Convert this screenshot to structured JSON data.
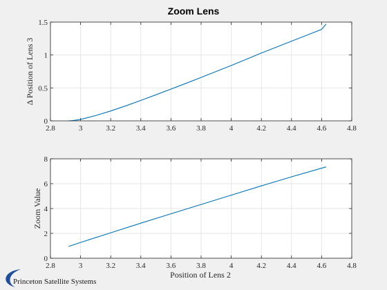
{
  "logo": {
    "text": "Princeton Satellite Systems"
  },
  "chart_data": [
    {
      "type": "line",
      "title": "Zoom Lens",
      "xlabel": "",
      "ylabel": "Δ Position of Lens 3",
      "xlim": [
        2.8,
        4.8
      ],
      "ylim": [
        0,
        1.5
      ],
      "xticks": [
        2.8,
        3,
        3.2,
        3.4,
        3.6,
        3.8,
        4,
        4.2,
        4.4,
        4.6,
        4.8
      ],
      "xtick_labels": [
        "2.8",
        "3",
        "3.2",
        "3.4",
        "3.6",
        "3.8",
        "4",
        "4.2",
        "4.4",
        "4.6",
        "4.8"
      ],
      "yticks": [
        0,
        0.5,
        1,
        1.5
      ],
      "ytick_labels": [
        "0",
        "0.5",
        "1",
        "1.5"
      ],
      "grid": true,
      "color": "#0072bd",
      "x": [
        2.92,
        2.95,
        3.0,
        3.05,
        3.1,
        3.2,
        3.3,
        3.4,
        3.5,
        3.6,
        3.7,
        3.8,
        3.9,
        4.0,
        4.1,
        4.2,
        4.3,
        4.4,
        4.5,
        4.6,
        4.63
      ],
      "y": [
        0.0,
        0.004,
        0.022,
        0.05,
        0.08,
        0.15,
        0.228,
        0.31,
        0.395,
        0.482,
        0.57,
        0.66,
        0.75,
        0.84,
        0.935,
        1.03,
        1.12,
        1.21,
        1.3,
        1.39,
        1.47
      ]
    },
    {
      "type": "line",
      "title": "",
      "xlabel": "Position of Lens 2",
      "ylabel": "Zoom Value",
      "xlim": [
        2.8,
        4.8
      ],
      "ylim": [
        0,
        8
      ],
      "xticks": [
        2.8,
        3,
        3.2,
        3.4,
        3.6,
        3.8,
        4,
        4.2,
        4.4,
        4.6,
        4.8
      ],
      "xtick_labels": [
        "2.8",
        "3",
        "3.2",
        "3.4",
        "3.6",
        "3.8",
        "4",
        "4.2",
        "4.4",
        "4.6",
        "4.8"
      ],
      "yticks": [
        0,
        2,
        4,
        6,
        8
      ],
      "ytick_labels": [
        "0",
        "2",
        "4",
        "6",
        "8"
      ],
      "grid": true,
      "color": "#0072bd",
      "x": [
        2.92,
        3.0,
        3.2,
        3.4,
        3.6,
        3.8,
        4.0,
        4.2,
        4.4,
        4.63
      ],
      "y": [
        0.95,
        1.27,
        2.05,
        2.82,
        3.58,
        4.33,
        5.08,
        5.82,
        6.55,
        7.35
      ]
    }
  ]
}
